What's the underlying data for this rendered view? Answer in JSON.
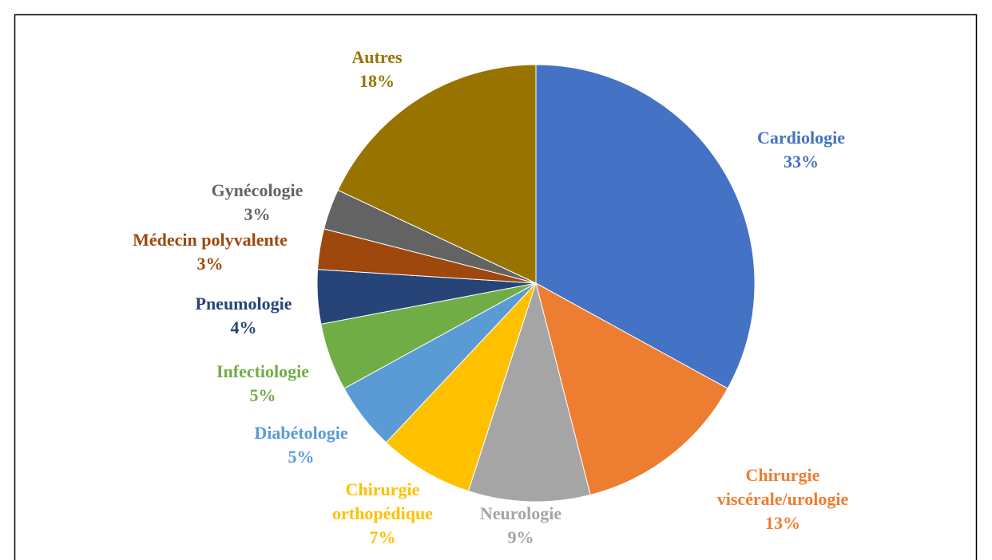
{
  "chart_data": {
    "type": "pie",
    "categories": [
      "Cardiologie",
      "Chirurgie viscérale/urologie",
      "Neurologie",
      "Chirurgie orthopédique",
      "Diabétologie",
      "Infectiologie",
      "Pneumologie",
      "Médecin polyvalente",
      "Gynécologie",
      "Autres"
    ],
    "values": [
      33,
      13,
      9,
      7,
      5,
      5,
      4,
      3,
      3,
      18
    ],
    "value_labels": [
      "33%",
      "13%",
      "9%",
      "7%",
      "5%",
      "5%",
      "4%",
      "3%",
      "3%",
      "18%"
    ],
    "colors": [
      "#4472c4",
      "#ed7d31",
      "#a5a5a5",
      "#ffc000",
      "#5b9bd5",
      "#70ad47",
      "#264478",
      "#9e480e",
      "#636363",
      "#997300"
    ]
  }
}
